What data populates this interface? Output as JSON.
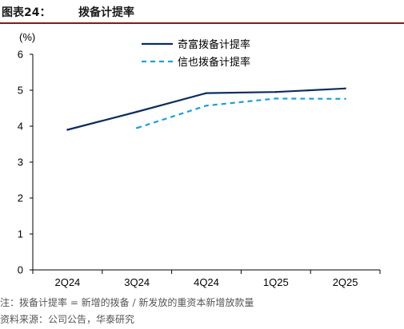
{
  "figure": {
    "label": "图表24：",
    "title": "拨备计提率",
    "note": "注：拨备计提率 = 新增的拨备 / 新发放的重资本新增放款量",
    "source": "资料来源：公司公告，华泰研究"
  },
  "chart_data": {
    "type": "line",
    "title": "",
    "ylabel": "(%)",
    "xlabel": "",
    "categories": [
      "2Q24",
      "3Q24",
      "4Q24",
      "1Q25",
      "2Q25"
    ],
    "ylim": [
      0,
      6
    ],
    "yticks": [
      0,
      1,
      2,
      3,
      4,
      5,
      6
    ],
    "grid": false,
    "legend_position": "top-center",
    "series": [
      {
        "name": "奇富拨备计提率",
        "values": [
          3.9,
          4.4,
          4.92,
          4.95,
          5.05
        ],
        "color": "#0b2d5e",
        "style": "solid"
      },
      {
        "name": "信也拨备计提率",
        "values": [
          null,
          3.95,
          4.57,
          4.77,
          4.76
        ],
        "color": "#1ba1d8",
        "style": "dashed"
      }
    ]
  }
}
